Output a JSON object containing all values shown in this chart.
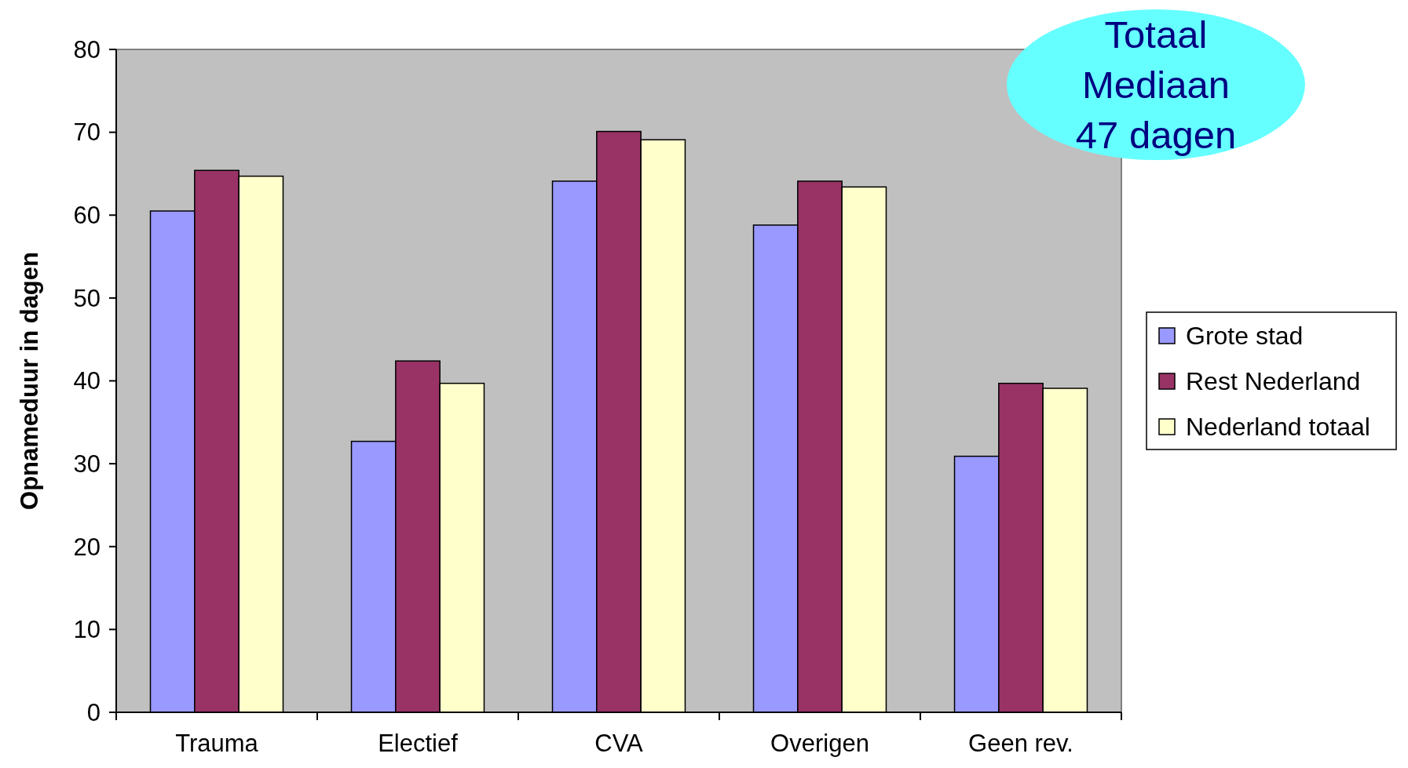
{
  "chart_data": {
    "type": "bar",
    "ylabel": "Opnameduur in dagen",
    "categories": [
      "Trauma",
      "Electief",
      "CVA",
      "Overigen",
      "Geen rev."
    ],
    "series": [
      {
        "name": "Grote stad",
        "color": "#9999ff",
        "values": [
          60.5,
          32.7,
          64.1,
          58.8,
          30.9
        ]
      },
      {
        "name": "Rest Nederland",
        "color": "#993366",
        "values": [
          65.4,
          42.4,
          70.1,
          64.1,
          39.7
        ]
      },
      {
        "name": "Nederland totaal",
        "color": "#ffffcc",
        "values": [
          64.7,
          39.7,
          69.1,
          63.4,
          39.1
        ]
      }
    ],
    "ylim": [
      0,
      80
    ],
    "yticks": [
      0,
      10,
      20,
      30,
      40,
      50,
      60,
      70,
      80
    ],
    "grid": false,
    "legend": "right",
    "annotations": [
      "Totaal\nMediaan\n47 dagen"
    ]
  }
}
